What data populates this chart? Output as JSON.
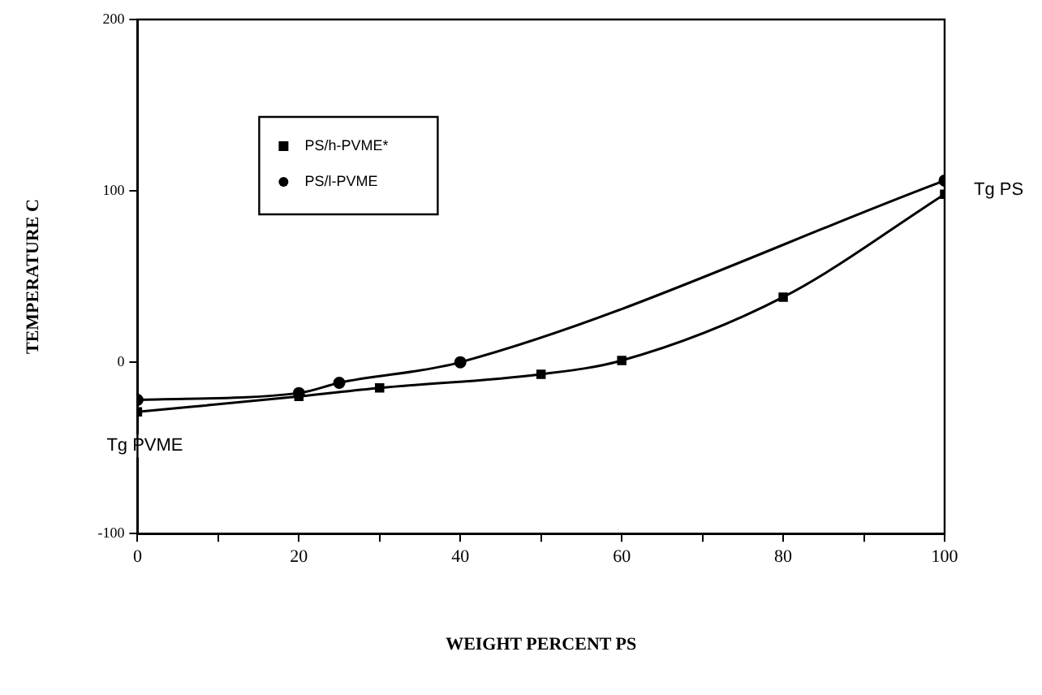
{
  "chart_data": {
    "type": "line",
    "xlabel": "WEIGHT PERCENT PS",
    "ylabel": "TEMPERATURE C",
    "series": [
      {
        "name": "PS/h-PVME*",
        "color": "#000000",
        "marker": "square",
        "x": [
          0,
          20,
          30,
          50,
          60,
          80,
          100
        ],
        "values": [
          -29,
          -20,
          -15,
          -7,
          1,
          38,
          98
        ]
      },
      {
        "name": "PS/l-PVME",
        "color": "#000000",
        "marker": "circle",
        "x": [
          0,
          20,
          25,
          40,
          100
        ],
        "values": [
          -22,
          -18,
          -12,
          0,
          106
        ]
      }
    ],
    "xlim": [
      0,
      100
    ],
    "xticks": [
      0,
      {
        "value": 10,
        "label": null
      },
      20,
      {
        "value": 30,
        "label": null
      },
      40,
      {
        "value": 50,
        "label": null
      },
      60,
      {
        "value": 70,
        "label": null
      },
      80,
      {
        "value": 90,
        "label": null
      },
      100
    ],
    "ylim": [
      -100,
      200
    ],
    "yticks": [
      -100,
      0,
      100,
      200
    ],
    "grid": false,
    "legend": "top left",
    "line_style": "solid",
    "annotations": [
      {
        "text": "Tg PS",
        "x": 100,
        "y": 106
      },
      {
        "text": "Tg PVME",
        "x": 0,
        "y": -29
      }
    ]
  }
}
